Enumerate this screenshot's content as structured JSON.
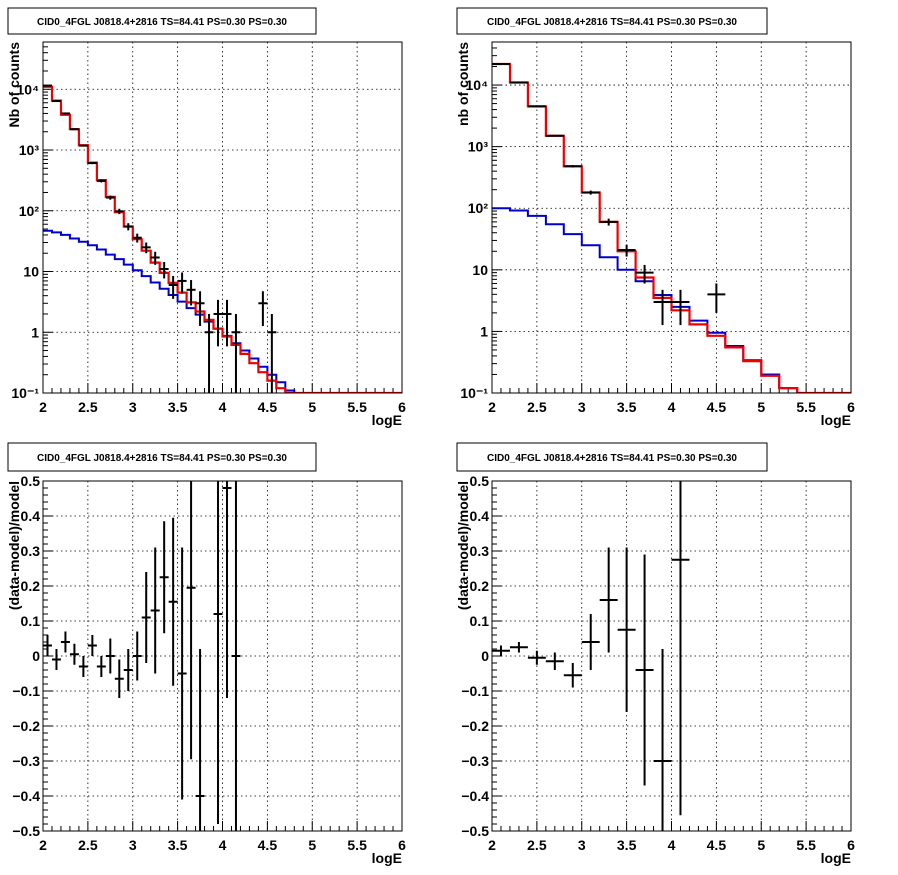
{
  "chart_data": [
    {
      "type": "step",
      "title": "CID0_4FGL J0818.4+2816 TS=84.41 PS=0.30 PS=0.30",
      "xlabel": "logE",
      "ylabel": "Nb of counts",
      "ylog": true,
      "xlim": [
        2,
        6
      ],
      "ylim": [
        0.1,
        60000
      ],
      "xticks": [
        "2",
        "2.5",
        "3",
        "3.5",
        "4",
        "4.5",
        "5",
        "5.5",
        "6"
      ],
      "yticks": [
        {
          "value": 0.1,
          "label": "10⁻¹"
        },
        {
          "value": 1,
          "label": "1"
        },
        {
          "value": 10,
          "label": "10"
        },
        {
          "value": 100,
          "label": "10²"
        },
        {
          "value": 1000,
          "label": "10³"
        },
        {
          "value": 10000,
          "label": "10⁴"
        }
      ],
      "grid": true,
      "colors": {
        "data": "#000000",
        "total_model": "#ee0000",
        "component": "#0000cc"
      },
      "series": [
        {
          "role": "total_model",
          "bin_edges": [
            2.0,
            2.1,
            2.2,
            2.3,
            2.4,
            2.5,
            2.6,
            2.7,
            2.8,
            2.9,
            3.0,
            3.1,
            3.2,
            3.3,
            3.4,
            3.5,
            3.6,
            3.7,
            3.8,
            3.9,
            4.0,
            4.1,
            4.2,
            4.3,
            4.4,
            4.5,
            4.6,
            4.7,
            4.8,
            4.9,
            5.0,
            5.1,
            5.2,
            5.3,
            5.4,
            5.5,
            5.6,
            5.7,
            5.8,
            5.9,
            6.0
          ],
          "values": [
            11000,
            6500,
            3800,
            2200,
            1200,
            620,
            320,
            170,
            95,
            55,
            34,
            22,
            14,
            9.5,
            6.5,
            4.5,
            3.1,
            2.2,
            1.6,
            1.15,
            0.85,
            0.62,
            0.44,
            0.31,
            0.22,
            0.16,
            0.12,
            0.1,
            0.1,
            0.1,
            0.1,
            0.1,
            0.1,
            0.1,
            0.1,
            0.1,
            0.1,
            0.1,
            0.1,
            0.1
          ]
        },
        {
          "role": "component",
          "bin_edges": [
            2.0,
            2.1,
            2.2,
            2.3,
            2.4,
            2.5,
            2.6,
            2.7,
            2.8,
            2.9,
            3.0,
            3.1,
            3.2,
            3.3,
            3.4,
            3.5,
            3.6,
            3.7,
            3.8,
            3.9,
            4.0,
            4.1,
            4.2,
            4.3,
            4.4,
            4.5,
            4.6,
            4.7,
            4.8,
            4.9,
            5.0,
            5.1,
            5.2,
            5.3,
            5.4,
            5.5,
            5.6,
            5.7,
            5.8,
            5.9,
            6.0
          ],
          "values": [
            47,
            44,
            40,
            35,
            31,
            27,
            23,
            19,
            16,
            13,
            10.5,
            8.4,
            6.6,
            5.2,
            4.1,
            3.2,
            2.5,
            1.95,
            1.5,
            1.15,
            0.87,
            0.66,
            0.5,
            0.37,
            0.27,
            0.2,
            0.15,
            0.11,
            0.1,
            0.1,
            0.1,
            0.1,
            0.1,
            0.1,
            0.1,
            0.1,
            0.1,
            0.1,
            0.1,
            0.1
          ]
        },
        {
          "role": "data",
          "points": [
            {
              "x": 2.05,
              "y": 11500
            },
            {
              "x": 2.15,
              "y": 6400
            },
            {
              "x": 2.25,
              "y": 4000
            },
            {
              "x": 2.35,
              "y": 2200
            },
            {
              "x": 2.45,
              "y": 1180
            },
            {
              "x": 2.55,
              "y": 610
            },
            {
              "x": 2.65,
              "y": 310
            },
            {
              "x": 2.75,
              "y": 165
            },
            {
              "x": 2.85,
              "y": 98
            },
            {
              "x": 2.95,
              "y": 55
            },
            {
              "x": 3.05,
              "y": 36
            },
            {
              "x": 3.15,
              "y": 25
            },
            {
              "x": 3.25,
              "y": 17
            },
            {
              "x": 3.35,
              "y": 11
            },
            {
              "x": 3.45,
              "y": 6
            },
            {
              "x": 3.55,
              "y": 7
            },
            {
              "x": 3.65,
              "y": 5
            },
            {
              "x": 3.75,
              "y": 3
            },
            {
              "x": 3.85,
              "y": 1
            },
            {
              "x": 3.95,
              "y": 2
            },
            {
              "x": 4.05,
              "y": 2
            },
            {
              "x": 4.15,
              "y": 1
            },
            {
              "x": 4.45,
              "y": 3
            },
            {
              "x": 4.55,
              "y": 1
            }
          ]
        }
      ]
    },
    {
      "type": "step",
      "title": "CID0_4FGL J0818.4+2816 TS=84.41 PS=0.30 PS=0.30",
      "xlabel": "logE",
      "ylabel": "nb of counts",
      "ylog": true,
      "xlim": [
        2,
        6
      ],
      "ylim": [
        0.1,
        50000
      ],
      "xticks": [
        "2",
        "2.5",
        "3",
        "3.5",
        "4",
        "4.5",
        "5",
        "5.5",
        "6"
      ],
      "yticks": [
        {
          "value": 0.1,
          "label": "10⁻¹"
        },
        {
          "value": 1,
          "label": "1"
        },
        {
          "value": 10,
          "label": "10"
        },
        {
          "value": 100,
          "label": "10²"
        },
        {
          "value": 1000,
          "label": "10³"
        },
        {
          "value": 10000,
          "label": "10⁴"
        }
      ],
      "grid": true,
      "colors": {
        "data": "#000000",
        "total_model": "#ee0000",
        "component": "#0000cc"
      },
      "series": [
        {
          "role": "total_model",
          "bin_edges": [
            2.0,
            2.2,
            2.4,
            2.6,
            2.8,
            3.0,
            3.2,
            3.4,
            3.6,
            3.8,
            4.0,
            4.2,
            4.4,
            4.6,
            4.8,
            5.0,
            5.2,
            5.4,
            5.6,
            5.8,
            6.0
          ],
          "values": [
            22000,
            11000,
            4500,
            1500,
            480,
            180,
            60,
            20,
            7.5,
            3.5,
            2.2,
            1.3,
            0.85,
            0.55,
            0.33,
            0.19,
            0.12,
            0.1,
            0.1,
            0.1
          ]
        },
        {
          "role": "component",
          "bin_edges": [
            2.0,
            2.2,
            2.4,
            2.6,
            2.8,
            3.0,
            3.2,
            3.4,
            3.6,
            3.8,
            4.0,
            4.2,
            4.4,
            4.6,
            4.8,
            5.0,
            5.2,
            5.4,
            5.6,
            5.8,
            6.0
          ],
          "values": [
            100,
            92,
            75,
            55,
            38,
            25,
            16,
            10,
            6.5,
            3.9,
            2.5,
            1.5,
            0.95,
            0.58,
            0.34,
            0.2,
            0.12,
            0.1,
            0.1,
            0.1
          ]
        },
        {
          "role": "data",
          "points": [
            {
              "x": 2.1,
              "y": 22000
            },
            {
              "x": 2.3,
              "y": 11000
            },
            {
              "x": 2.5,
              "y": 4500
            },
            {
              "x": 2.7,
              "y": 1500
            },
            {
              "x": 2.9,
              "y": 480
            },
            {
              "x": 3.1,
              "y": 180
            },
            {
              "x": 3.3,
              "y": 60
            },
            {
              "x": 3.5,
              "y": 21
            },
            {
              "x": 3.7,
              "y": 9
            },
            {
              "x": 3.9,
              "y": 3
            },
            {
              "x": 4.1,
              "y": 3
            },
            {
              "x": 4.5,
              "y": 4
            }
          ]
        }
      ]
    },
    {
      "type": "scatter",
      "title": "CID0_4FGL J0818.4+2816 TS=84.41 PS=0.30 PS=0.30",
      "xlabel": "logE",
      "ylabel": "(data-model)/model",
      "xlim": [
        2,
        6
      ],
      "ylim": [
        -0.5,
        0.5
      ],
      "xticks": [
        "2",
        "2.5",
        "3",
        "3.5",
        "4",
        "4.5",
        "5",
        "5.5",
        "6"
      ],
      "yticks": [
        "−0.5",
        "−0.4",
        "−0.3",
        "−0.2",
        "−0.1",
        "0",
        "0.1",
        "0.2",
        "0.3",
        "0.4",
        "0.5"
      ],
      "grid": true,
      "points": [
        {
          "x": 2.05,
          "y": 0.03,
          "err": 0.03
        },
        {
          "x": 2.15,
          "y": -0.01,
          "err": 0.03
        },
        {
          "x": 2.25,
          "y": 0.04,
          "err": 0.03
        },
        {
          "x": 2.35,
          "y": 0.005,
          "err": 0.03
        },
        {
          "x": 2.45,
          "y": -0.03,
          "err": 0.03
        },
        {
          "x": 2.55,
          "y": 0.03,
          "err": 0.03
        },
        {
          "x": 2.65,
          "y": -0.03,
          "err": 0.03
        },
        {
          "x": 2.75,
          "y": 0.0,
          "err": 0.05
        },
        {
          "x": 2.85,
          "y": -0.065,
          "err": 0.055
        },
        {
          "x": 2.95,
          "y": -0.04,
          "err": 0.06
        },
        {
          "x": 3.05,
          "y": 0.0,
          "err": 0.07
        },
        {
          "x": 3.15,
          "y": 0.11,
          "err": 0.13
        },
        {
          "x": 3.25,
          "y": 0.13,
          "err": 0.18
        },
        {
          "x": 3.35,
          "y": 0.225,
          "err": 0.16
        },
        {
          "x": 3.45,
          "y": 0.155,
          "err": 0.24
        },
        {
          "x": 3.55,
          "y": -0.05,
          "err": 0.36
        },
        {
          "x": 3.65,
          "y": 0.195,
          "err": 0.49
        },
        {
          "x": 3.75,
          "y": -0.4,
          "err": 0.42
        },
        {
          "x": 3.95,
          "y": 0.12,
          "err": 0.6
        },
        {
          "x": 4.05,
          "y": 0.48,
          "err": 0.6
        },
        {
          "x": 4.15,
          "y": 0.0,
          "err": 0.6
        }
      ]
    },
    {
      "type": "scatter",
      "title": "CID0_4FGL J0818.4+2816 TS=84.41 PS=0.30 PS=0.30",
      "xlabel": "logE",
      "ylabel": "(data-model)/model",
      "xlim": [
        2,
        6
      ],
      "ylim": [
        -0.5,
        0.5
      ],
      "xticks": [
        "2",
        "2.5",
        "3",
        "3.5",
        "4",
        "4.5",
        "5",
        "5.5",
        "6"
      ],
      "yticks": [
        "−0.5",
        "−0.4",
        "−0.3",
        "−0.2",
        "−0.1",
        "0",
        "0.1",
        "0.2",
        "0.3",
        "0.4",
        "0.5"
      ],
      "grid": true,
      "points": [
        {
          "x": 2.1,
          "y": 0.015,
          "err": 0.015
        },
        {
          "x": 2.3,
          "y": 0.025,
          "err": 0.015
        },
        {
          "x": 2.5,
          "y": -0.005,
          "err": 0.02
        },
        {
          "x": 2.7,
          "y": -0.015,
          "err": 0.025
        },
        {
          "x": 2.9,
          "y": -0.055,
          "err": 0.035
        },
        {
          "x": 3.1,
          "y": 0.04,
          "err": 0.08
        },
        {
          "x": 3.3,
          "y": 0.16,
          "err": 0.15
        },
        {
          "x": 3.5,
          "y": 0.075,
          "err": 0.235
        },
        {
          "x": 3.7,
          "y": -0.04,
          "err": 0.33
        },
        {
          "x": 3.9,
          "y": -0.3,
          "err": 0.32
        },
        {
          "x": 4.1,
          "y": 0.275,
          "err": 0.73
        }
      ]
    }
  ]
}
